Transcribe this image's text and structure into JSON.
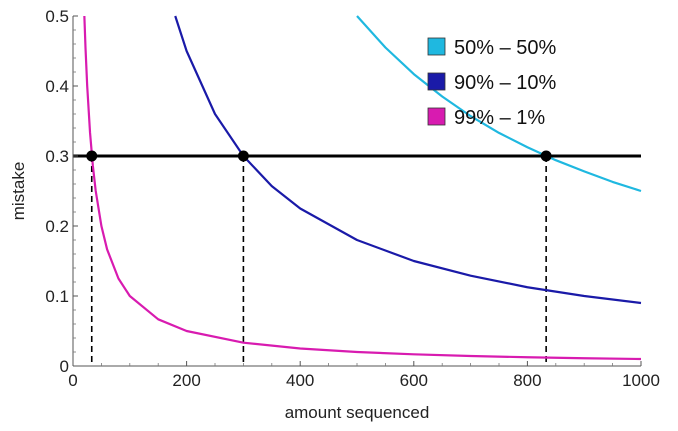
{
  "chart_data": {
    "type": "line",
    "xlabel": "amount sequenced",
    "ylabel": "mistake",
    "xlim": [
      0,
      1000
    ],
    "ylim": [
      0,
      0.5
    ],
    "x_ticks": [
      0,
      200,
      400,
      600,
      800,
      1000
    ],
    "y_ticks": [
      0,
      0.1,
      0.2,
      0.3,
      0.4,
      0.5
    ],
    "x_tick_labels": [
      "0",
      "200",
      "400",
      "600",
      "800",
      "1000"
    ],
    "y_tick_labels": [
      "0",
      "0.1",
      "0.2",
      "0.3",
      "0.4",
      "0.5"
    ],
    "grid": false,
    "legend_position": "top-right",
    "series": [
      {
        "name": "50% – 50%",
        "color": "#1fb8e0",
        "x": [
          500,
          550,
          600,
          650,
          700,
          750,
          800,
          850,
          900,
          950,
          1000
        ],
        "y": [
          0.5,
          0.455,
          0.417,
          0.385,
          0.357,
          0.333,
          0.3125,
          0.294,
          0.278,
          0.263,
          0.25
        ]
      },
      {
        "name": "90% – 10%",
        "color": "#1a1aa8",
        "x": [
          180,
          200,
          250,
          300,
          350,
          400,
          500,
          600,
          700,
          800,
          900,
          1000
        ],
        "y": [
          0.5,
          0.45,
          0.36,
          0.3,
          0.257,
          0.225,
          0.18,
          0.15,
          0.129,
          0.1125,
          0.1,
          0.09
        ]
      },
      {
        "name": "99% – 1%",
        "color": "#d81bb0",
        "x": [
          20,
          22,
          25,
          30,
          35,
          40,
          50,
          60,
          80,
          100,
          150,
          200,
          300,
          400,
          500,
          600,
          700,
          800,
          900,
          1000
        ],
        "y": [
          0.5,
          0.4545,
          0.4,
          0.3333,
          0.2857,
          0.25,
          0.2,
          0.1667,
          0.125,
          0.1,
          0.0667,
          0.05,
          0.0333,
          0.025,
          0.02,
          0.0167,
          0.0143,
          0.0125,
          0.0111,
          0.01
        ]
      }
    ],
    "threshold": {
      "y": 0.3,
      "color": "#000000"
    },
    "marked_points": [
      {
        "x": 33,
        "y": 0.3
      },
      {
        "x": 300,
        "y": 0.3
      },
      {
        "x": 833,
        "y": 0.3
      }
    ]
  }
}
